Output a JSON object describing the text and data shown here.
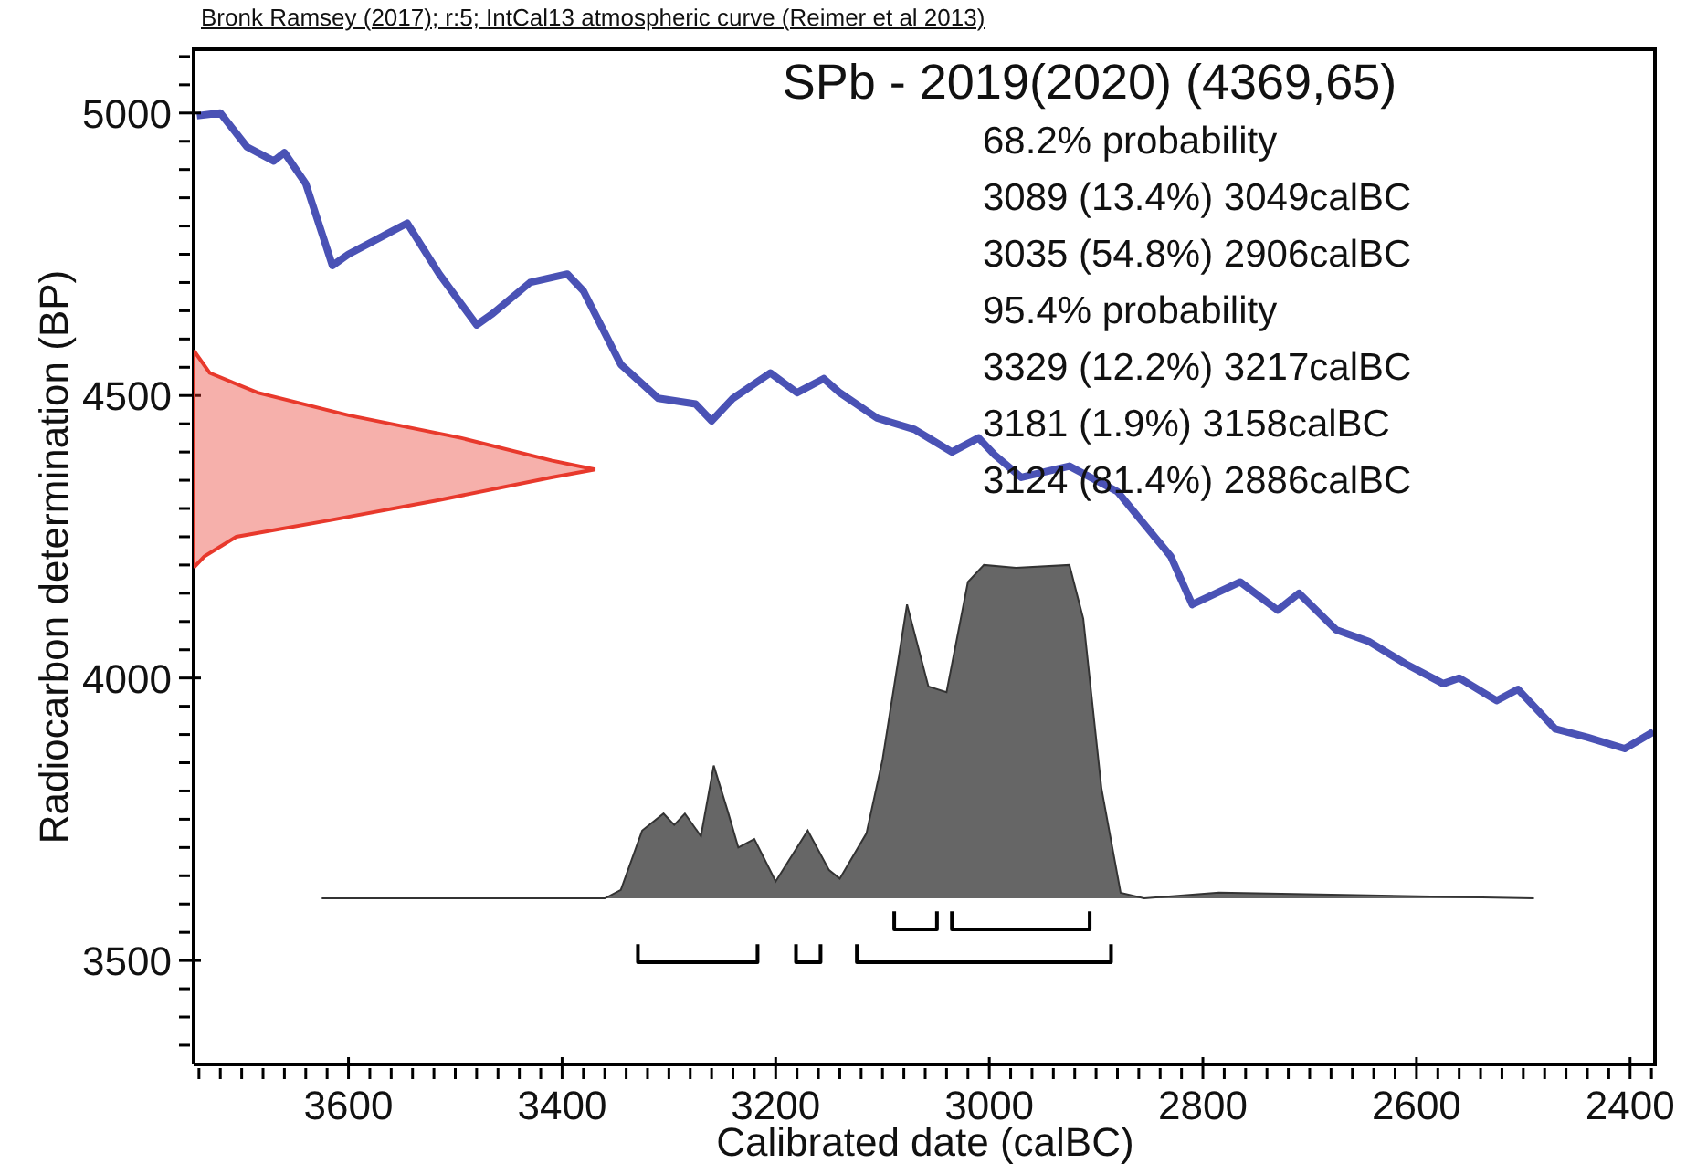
{
  "chart_data": {
    "type": "line",
    "title": "SPb - 2019(2020) (4369,65)",
    "xlabel": "Calibrated date (calBC)",
    "ylabel": "Radiocarbon determination (BP)",
    "annotations": [
      "Bronk Ramsey (2017); r:5; IntCal13 atmospheric curve (Reimer et al 2013)",
      "68.2% probability",
      "3089 (13.4%) 3049calBC",
      "3035 (54.8%) 2906calBC",
      "95.4% probability",
      "3329 (12.2%) 3217calBC",
      "3181 (1.9%) 3158calBC",
      "3124 (81.4%) 2886calBC"
    ],
    "xlim": [
      3745,
      2375
    ],
    "ylim": [
      3316,
      5116
    ],
    "xticks": [
      {
        "value": 3740,
        "label": null
      },
      {
        "value": 3720,
        "label": null
      },
      {
        "value": 3700,
        "label": null
      },
      {
        "value": 3680,
        "label": null
      },
      {
        "value": 3660,
        "label": null
      },
      {
        "value": 3640,
        "label": null
      },
      {
        "value": 3620,
        "label": null
      },
      3600,
      {
        "value": 3580,
        "label": null
      },
      {
        "value": 3560,
        "label": null
      },
      {
        "value": 3540,
        "label": null
      },
      {
        "value": 3520,
        "label": null
      },
      {
        "value": 3500,
        "label": null
      },
      {
        "value": 3480,
        "label": null
      },
      {
        "value": 3460,
        "label": null
      },
      {
        "value": 3440,
        "label": null
      },
      {
        "value": 3420,
        "label": null
      },
      3400,
      {
        "value": 3380,
        "label": null
      },
      {
        "value": 3360,
        "label": null
      },
      {
        "value": 3340,
        "label": null
      },
      {
        "value": 3320,
        "label": null
      },
      {
        "value": 3300,
        "label": null
      },
      {
        "value": 3280,
        "label": null
      },
      {
        "value": 3260,
        "label": null
      },
      {
        "value": 3240,
        "label": null
      },
      {
        "value": 3220,
        "label": null
      },
      3200,
      {
        "value": 3180,
        "label": null
      },
      {
        "value": 3160,
        "label": null
      },
      {
        "value": 3140,
        "label": null
      },
      {
        "value": 3120,
        "label": null
      },
      {
        "value": 3100,
        "label": null
      },
      {
        "value": 3080,
        "label": null
      },
      {
        "value": 3060,
        "label": null
      },
      {
        "value": 3040,
        "label": null
      },
      {
        "value": 3020,
        "label": null
      },
      3000,
      {
        "value": 2980,
        "label": null
      },
      {
        "value": 2960,
        "label": null
      },
      {
        "value": 2940,
        "label": null
      },
      {
        "value": 2920,
        "label": null
      },
      {
        "value": 2900,
        "label": null
      },
      {
        "value": 2880,
        "label": null
      },
      {
        "value": 2860,
        "label": null
      },
      {
        "value": 2840,
        "label": null
      },
      {
        "value": 2820,
        "label": null
      },
      2800,
      {
        "value": 2780,
        "label": null
      },
      {
        "value": 2760,
        "label": null
      },
      {
        "value": 2740,
        "label": null
      },
      {
        "value": 2720,
        "label": null
      },
      {
        "value": 2700,
        "label": null
      },
      {
        "value": 2680,
        "label": null
      },
      {
        "value": 2660,
        "label": null
      },
      {
        "value": 2640,
        "label": null
      },
      {
        "value": 2620,
        "label": null
      },
      2600,
      {
        "value": 2580,
        "label": null
      },
      {
        "value": 2560,
        "label": null
      },
      {
        "value": 2540,
        "label": null
      },
      {
        "value": 2520,
        "label": null
      },
      {
        "value": 2500,
        "label": null
      },
      {
        "value": 2480,
        "label": null
      },
      {
        "value": 2460,
        "label": null
      },
      {
        "value": 2440,
        "label": null
      },
      {
        "value": 2420,
        "label": null
      },
      2400,
      {
        "value": 2380,
        "label": null
      }
    ],
    "yticks": [
      {
        "value": 3350,
        "label": null
      },
      {
        "value": 3400,
        "label": null
      },
      {
        "value": 3450,
        "label": null
      },
      3500,
      {
        "value": 3550,
        "label": null
      },
      {
        "value": 3600,
        "label": null
      },
      {
        "value": 3650,
        "label": null
      },
      {
        "value": 3700,
        "label": null
      },
      {
        "value": 3750,
        "label": null
      },
      {
        "value": 3800,
        "label": null
      },
      {
        "value": 3850,
        "label": null
      },
      {
        "value": 3900,
        "label": null
      },
      {
        "value": 3950,
        "label": null
      },
      4000,
      {
        "value": 4050,
        "label": null
      },
      {
        "value": 4100,
        "label": null
      },
      {
        "value": 4150,
        "label": null
      },
      {
        "value": 4200,
        "label": null
      },
      {
        "value": 4250,
        "label": null
      },
      {
        "value": 4300,
        "label": null
      },
      {
        "value": 4350,
        "label": null
      },
      {
        "value": 4400,
        "label": null
      },
      {
        "value": 4450,
        "label": null
      },
      4500,
      {
        "value": 4550,
        "label": null
      },
      {
        "value": 4600,
        "label": null
      },
      {
        "value": 4650,
        "label": null
      },
      {
        "value": 4700,
        "label": null
      },
      {
        "value": 4750,
        "label": null
      },
      {
        "value": 4800,
        "label": null
      },
      {
        "value": 4850,
        "label": null
      },
      {
        "value": 4900,
        "label": null
      },
      {
        "value": 4950,
        "label": null
      },
      5000,
      {
        "value": 5050,
        "label": null
      },
      {
        "value": 5100,
        "label": null
      }
    ],
    "grid": false,
    "legend": false,
    "series": [
      {
        "color": "#4a52b5",
        "x": [
          3742,
          3720,
          3695,
          3670,
          3660,
          3640,
          3615,
          3600,
          3565,
          3545,
          3515,
          3480,
          3465,
          3430,
          3395,
          3380,
          3345,
          3310,
          3275,
          3260,
          3240,
          3205,
          3180,
          3155,
          3140,
          3105,
          3070,
          3035,
          3010,
          2995,
          2970,
          2925,
          2880,
          2830,
          2810,
          2765,
          2730,
          2710,
          2675,
          2645,
          2610,
          2575,
          2560,
          2525,
          2505,
          2470,
          2440,
          2405,
          2378
        ],
        "values": [
          4995,
          5000,
          4940,
          4915,
          4930,
          4875,
          4730,
          4750,
          4785,
          4805,
          4715,
          4625,
          4645,
          4700,
          4715,
          4685,
          4555,
          4495,
          4485,
          4455,
          4495,
          4540,
          4505,
          4530,
          4505,
          4460,
          4440,
          4400,
          4425,
          4395,
          4355,
          4375,
          4330,
          4215,
          4130,
          4170,
          4120,
          4150,
          4085,
          4065,
          4025,
          3990,
          4000,
          3960,
          3980,
          3910,
          3895,
          3875,
          3905
        ]
      },
      {
        "type": "area",
        "color": "#e8392c",
        "x": [
          3745,
          3730,
          3685,
          3600,
          3495,
          3410,
          3369,
          3410,
          3515,
          3615,
          3705,
          3735,
          3745
        ],
        "values": [
          4580,
          4540,
          4505,
          4465,
          4425,
          4385,
          4369,
          4355,
          4315,
          4280,
          4250,
          4215,
          4195
        ]
      },
      {
        "type": "area",
        "color": "#666666",
        "x": [
          3625,
          3360,
          3345,
          3325,
          3305,
          3295,
          3285,
          3270,
          3258,
          3245,
          3235,
          3220,
          3200,
          3170,
          3150,
          3140,
          3115,
          3100,
          3077,
          3057,
          3040,
          3020,
          3005,
          2975,
          2925,
          2912,
          2895,
          2877,
          2855,
          2785,
          2490
        ],
        "values": [
          3610,
          3610,
          3625,
          3730,
          3760,
          3740,
          3760,
          3720,
          3845,
          3765,
          3700,
          3715,
          3640,
          3730,
          3660,
          3645,
          3725,
          3855,
          4130,
          3985,
          3975,
          4170,
          4200,
          4195,
          4200,
          4105,
          3805,
          3620,
          3610,
          3620,
          3610
        ]
      },
      {
        "color": "#000000",
        "x": [
          3089,
          3089,
          3049,
          3049,
          3042,
          3035,
          3035,
          2906,
          2906
        ],
        "values": [
          3587,
          3555,
          3555,
          3587,
          null,
          3587,
          3555,
          3555,
          3587
        ]
      },
      {
        "color": "#000000",
        "x": [
          3329,
          3329,
          3217,
          3217,
          3200,
          3181,
          3181,
          3158,
          3158,
          3140,
          3124,
          3124,
          2886,
          2886
        ],
        "values": [
          3529,
          3497,
          3497,
          3529,
          null,
          3529,
          3497,
          3497,
          3529,
          null,
          3529,
          3497,
          3497,
          3529
        ]
      }
    ]
  }
}
